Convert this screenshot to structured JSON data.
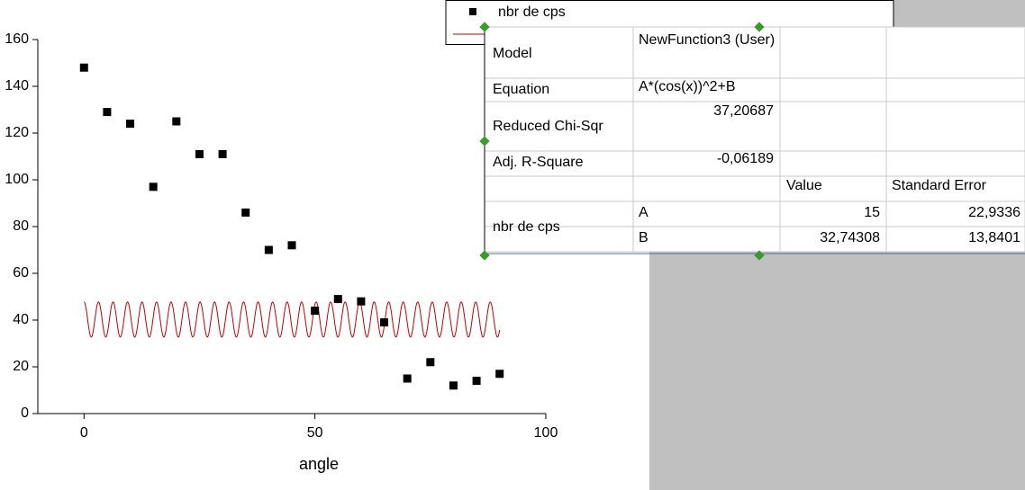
{
  "chart_data": {
    "type": "scatter",
    "xlabel": "angle",
    "xlim": [
      -10,
      100
    ],
    "xticks": [
      0,
      50,
      100
    ],
    "ylim": [
      0,
      160
    ],
    "yticks": [
      0,
      20,
      40,
      60,
      80,
      100,
      120,
      140,
      160
    ],
    "series": [
      {
        "name": "nbr de cps",
        "color": "#000000",
        "x": [
          0,
          5,
          10,
          15,
          20,
          25,
          30,
          35,
          40,
          45,
          50,
          55,
          60,
          65,
          70,
          75,
          80,
          85,
          90
        ],
        "values": [
          148,
          129,
          124,
          97,
          125,
          111,
          111,
          86,
          70,
          72,
          44,
          49,
          48,
          39,
          15,
          22,
          12,
          14,
          17
        ]
      }
    ],
    "fit_color": "#c00000"
  },
  "fit_table": {
    "rows": [
      [
        "Model",
        "NewFunction3 (User)"
      ],
      [
        "Equation",
        "A*(cos(x))^2+B"
      ],
      [
        "Reduced Chi-Sqr",
        {
          "value": 37.20687,
          "label": "37,20687"
        }
      ],
      [
        "Adj. R-Square",
        {
          "value": -0.06189,
          "label": "-0,06189"
        }
      ]
    ],
    "group": "nbr de cps",
    "columns": [
      "Value",
      "Standard Error"
    ],
    "params": [
      {
        "name": "A",
        "value": {
          "value": 15,
          "label": "15"
        },
        "error": {
          "value": 22.9336,
          "label": "22,9336"
        }
      },
      {
        "name": "B",
        "value": {
          "value": 32.74308,
          "label": "32,74308"
        },
        "error": {
          "value": 13.8401,
          "label": "13,8401"
        }
      }
    ]
  }
}
